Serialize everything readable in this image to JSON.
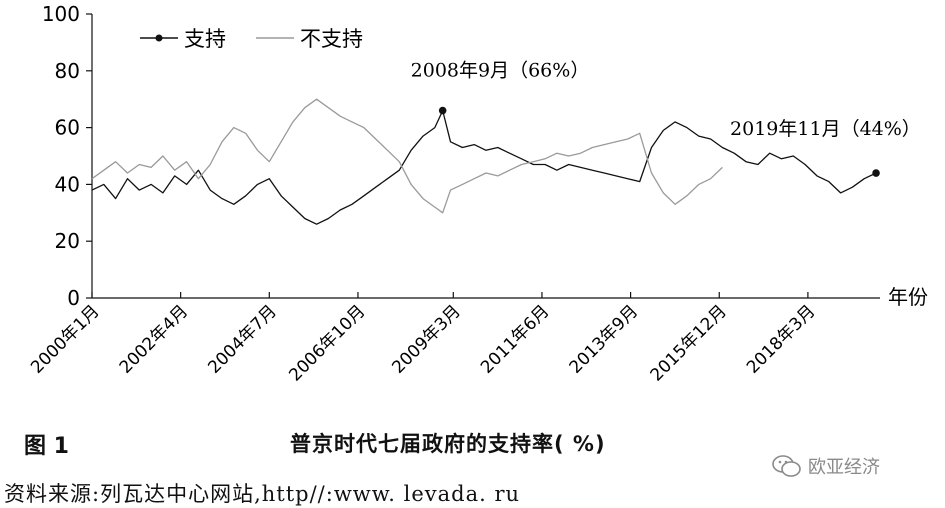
{
  "figure": {
    "label": "图 1",
    "title": "普京时代七届政府的支持率( %)",
    "source": "资料来源:列瓦达中心网站,http//:www. levada. ru",
    "watermark": "欧亚经济"
  },
  "chart_data": {
    "type": "line",
    "xlabel": "年份",
    "ylabel": "",
    "ylim": [
      0,
      100
    ],
    "yticks": [
      0,
      20,
      40,
      60,
      80,
      100
    ],
    "xlim": [
      2000.0,
      2020.0
    ],
    "xticks": [
      {
        "label": "2000年1月",
        "x": 2000.0
      },
      {
        "label": "2002年4月",
        "x": 2002.25
      },
      {
        "label": "2004年7月",
        "x": 2004.5
      },
      {
        "label": "2006年10月",
        "x": 2006.75
      },
      {
        "label": "2009年3月",
        "x": 2009.17
      },
      {
        "label": "2011年6月",
        "x": 2011.42
      },
      {
        "label": "2013年9月",
        "x": 2013.67
      },
      {
        "label": "2015年12月",
        "x": 2015.92
      },
      {
        "label": "2018年3月",
        "x": 2018.17
      }
    ],
    "legend_position": "top-left",
    "colors": {
      "support": "#111111",
      "oppose": "#9a9a9a"
    },
    "series": [
      {
        "name": "支持",
        "x": [
          2000.0,
          2000.3,
          2000.6,
          2000.9,
          2001.2,
          2001.5,
          2001.8,
          2002.1,
          2002.4,
          2002.7,
          2003.0,
          2003.3,
          2003.6,
          2003.9,
          2004.2,
          2004.5,
          2004.8,
          2005.1,
          2005.4,
          2005.7,
          2006.0,
          2006.3,
          2006.6,
          2006.9,
          2007.2,
          2007.5,
          2007.8,
          2008.1,
          2008.4,
          2008.7,
          2008.9,
          2009.1,
          2009.4,
          2009.7,
          2010.0,
          2010.3,
          2010.6,
          2010.9,
          2011.2,
          2011.5,
          2011.8,
          2012.1,
          2012.4,
          2012.7,
          2013.0,
          2013.3,
          2013.6,
          2013.9,
          2014.2,
          2014.5,
          2014.8,
          2015.1,
          2015.4,
          2015.7,
          2016.0,
          2016.3,
          2016.6,
          2016.9,
          2017.2,
          2017.5,
          2017.8,
          2018.1,
          2018.4,
          2018.7,
          2019.0,
          2019.3,
          2019.6,
          2019.9
        ],
        "y": [
          38,
          40,
          35,
          42,
          38,
          40,
          37,
          43,
          40,
          45,
          38,
          35,
          33,
          36,
          40,
          42,
          36,
          32,
          28,
          26,
          28,
          31,
          33,
          36,
          39,
          42,
          45,
          52,
          57,
          60,
          66,
          55,
          53,
          54,
          52,
          53,
          51,
          49,
          47,
          47,
          45,
          47,
          46,
          45,
          44,
          43,
          42,
          41,
          53,
          59,
          62,
          60,
          57,
          56,
          53,
          51,
          48,
          47,
          51,
          49,
          50,
          47,
          43,
          41,
          37,
          39,
          42,
          44
        ]
      },
      {
        "name": "不支持",
        "x": [
          2000.0,
          2000.3,
          2000.6,
          2000.9,
          2001.2,
          2001.5,
          2001.8,
          2002.1,
          2002.4,
          2002.7,
          2003.0,
          2003.3,
          2003.6,
          2003.9,
          2004.2,
          2004.5,
          2004.8,
          2005.1,
          2005.4,
          2005.7,
          2006.0,
          2006.3,
          2006.6,
          2006.9,
          2007.2,
          2007.5,
          2007.8,
          2008.1,
          2008.4,
          2008.7,
          2008.9,
          2009.1,
          2009.4,
          2009.7,
          2010.0,
          2010.3,
          2010.6,
          2010.9,
          2011.2,
          2011.5,
          2011.8,
          2012.1,
          2012.4,
          2012.7,
          2013.0,
          2013.3,
          2013.6,
          2013.9,
          2014.2,
          2014.5,
          2014.8,
          2015.1,
          2015.4,
          2015.7,
          2016.0
        ],
        "y": [
          42,
          45,
          48,
          44,
          47,
          46,
          50,
          45,
          48,
          42,
          47,
          55,
          60,
          58,
          52,
          48,
          55,
          62,
          67,
          70,
          67,
          64,
          62,
          60,
          56,
          52,
          48,
          40,
          35,
          32,
          30,
          38,
          40,
          42,
          44,
          43,
          45,
          47,
          48,
          49,
          51,
          50,
          51,
          53,
          54,
          55,
          56,
          58,
          44,
          37,
          33,
          36,
          40,
          42,
          46
        ]
      }
    ],
    "annotations": [
      {
        "text": "2008年9月（66%）",
        "x": 2008.9,
        "y": 66
      },
      {
        "text": "2019年11月（44%）",
        "x": 2019.9,
        "y": 44
      }
    ]
  }
}
